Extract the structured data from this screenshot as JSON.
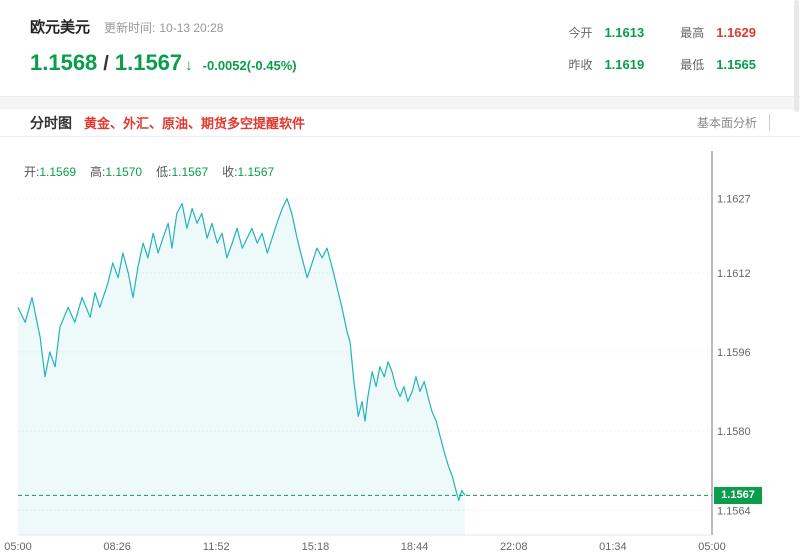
{
  "colors": {
    "green": "#0a9d4b",
    "red": "#e0392f",
    "line": "#23b3bb",
    "badge_bg": "#0a9d4b"
  },
  "header": {
    "symbol": "欧元美元",
    "update_label": "更新时间:",
    "update_time": "10-13 20:28",
    "price_main": "1.1568",
    "price_sep": "/",
    "price_second": "1.1567",
    "arrow": "↓",
    "change": "-0.0052(-0.45%)",
    "stats": [
      {
        "label": "今开",
        "value": "1.1613",
        "color": "green"
      },
      {
        "label": "最高",
        "value": "1.1629",
        "color": "red"
      },
      {
        "label": "昨收",
        "value": "1.1619",
        "color": "green"
      },
      {
        "label": "最低",
        "value": "1.1565",
        "color": "green"
      }
    ]
  },
  "tabbar": {
    "tab": "分时图",
    "promo": "黄金、外汇、原油、期货多空提醒软件",
    "right_link": "基本面分析"
  },
  "chart_legend": [
    {
      "label": "开:",
      "value": "1.1569"
    },
    {
      "label": "高:",
      "value": "1.1570"
    },
    {
      "label": "低:",
      "value": "1.1567"
    },
    {
      "label": "收:",
      "value": "1.1567"
    }
  ],
  "chart_data": {
    "type": "line",
    "title": "欧元美元分时图",
    "x_axis": {
      "labels": [
        "05:00",
        "08:26",
        "11:52",
        "15:18",
        "18:44",
        "22:08",
        "01:34",
        "05:00"
      ],
      "total_minutes": 1442
    },
    "y_ticks": [
      "1.1627",
      "1.1612",
      "1.1596",
      "1.1580",
      "1.1564"
    ],
    "y_tick_values": [
      1.1627,
      1.1612,
      1.1596,
      1.158,
      1.1564
    ],
    "ylim": [
      1.1559,
      1.1635
    ],
    "current_price": "1.1567",
    "current_price_value": 1.1567,
    "legend_ohlc": {
      "open": 1.1569,
      "high": 1.157,
      "low": 1.1567,
      "close": 1.1567
    },
    "line_color": "#23b3bb",
    "fill_color": "rgba(35,179,187,0.08)",
    "dash_color": "#0a9d4b",
    "points": [
      [
        0,
        1.1605
      ],
      [
        15,
        1.1602
      ],
      [
        29,
        1.1607
      ],
      [
        46,
        1.1599
      ],
      [
        56,
        1.1591
      ],
      [
        66,
        1.1596
      ],
      [
        77,
        1.1593
      ],
      [
        87,
        1.1601
      ],
      [
        104,
        1.1605
      ],
      [
        118,
        1.1602
      ],
      [
        133,
        1.1607
      ],
      [
        150,
        1.1603
      ],
      [
        160,
        1.1608
      ],
      [
        170,
        1.1605
      ],
      [
        187,
        1.161
      ],
      [
        197,
        1.1614
      ],
      [
        208,
        1.1611
      ],
      [
        218,
        1.1616
      ],
      [
        229,
        1.1612
      ],
      [
        239,
        1.1607
      ],
      [
        249,
        1.1613
      ],
      [
        260,
        1.1618
      ],
      [
        270,
        1.1615
      ],
      [
        281,
        1.162
      ],
      [
        291,
        1.1616
      ],
      [
        301,
        1.1619
      ],
      [
        312,
        1.1622
      ],
      [
        320,
        1.1617
      ],
      [
        330,
        1.1624
      ],
      [
        341,
        1.1626
      ],
      [
        351,
        1.1621
      ],
      [
        362,
        1.1625
      ],
      [
        372,
        1.1622
      ],
      [
        382,
        1.1624
      ],
      [
        393,
        1.1619
      ],
      [
        403,
        1.1622
      ],
      [
        414,
        1.1618
      ],
      [
        424,
        1.162
      ],
      [
        434,
        1.1615
      ],
      [
        445,
        1.1618
      ],
      [
        455,
        1.1621
      ],
      [
        466,
        1.1617
      ],
      [
        476,
        1.1619
      ],
      [
        486,
        1.1621
      ],
      [
        497,
        1.1618
      ],
      [
        507,
        1.162
      ],
      [
        518,
        1.1616
      ],
      [
        528,
        1.1619
      ],
      [
        538,
        1.1622
      ],
      [
        549,
        1.1625
      ],
      [
        559,
        1.1627
      ],
      [
        569,
        1.1624
      ],
      [
        580,
        1.1619
      ],
      [
        590,
        1.1615
      ],
      [
        601,
        1.1611
      ],
      [
        611,
        1.1614
      ],
      [
        621,
        1.1617
      ],
      [
        632,
        1.1615
      ],
      [
        642,
        1.1617
      ],
      [
        653,
        1.1613
      ],
      [
        663,
        1.1609
      ],
      [
        673,
        1.1605
      ],
      [
        684,
        1.16
      ],
      [
        690,
        1.1598
      ],
      [
        698,
        1.159
      ],
      [
        707,
        1.1583
      ],
      [
        715,
        1.1586
      ],
      [
        721,
        1.1582
      ],
      [
        727,
        1.1587
      ],
      [
        736,
        1.1592
      ],
      [
        744,
        1.1589
      ],
      [
        752,
        1.1593
      ],
      [
        761,
        1.1591
      ],
      [
        769,
        1.1594
      ],
      [
        777,
        1.1592
      ],
      [
        785,
        1.1589
      ],
      [
        794,
        1.1587
      ],
      [
        802,
        1.1589
      ],
      [
        810,
        1.1586
      ],
      [
        819,
        1.1588
      ],
      [
        827,
        1.1591
      ],
      [
        835,
        1.1588
      ],
      [
        844,
        1.159
      ],
      [
        852,
        1.1587
      ],
      [
        860,
        1.1584
      ],
      [
        869,
        1.1582
      ],
      [
        877,
        1.1579
      ],
      [
        885,
        1.1576
      ],
      [
        894,
        1.1573
      ],
      [
        902,
        1.1571
      ],
      [
        910,
        1.1568
      ],
      [
        916,
        1.1566
      ],
      [
        922,
        1.1568
      ],
      [
        929,
        1.1567
      ]
    ]
  }
}
